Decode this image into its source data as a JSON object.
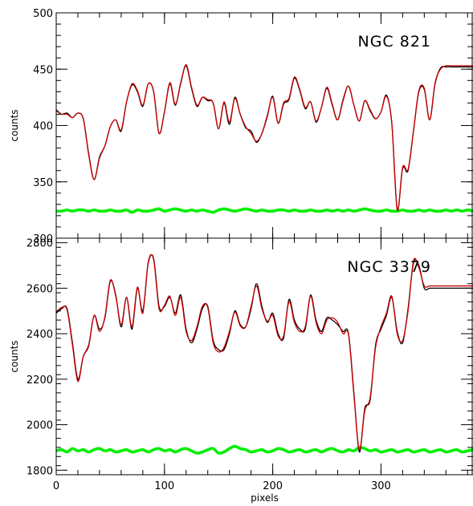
{
  "chart_data": [
    {
      "type": "line",
      "annotation": "NGC 821",
      "xlabel": "",
      "ylabel": "counts",
      "xlim": [
        0,
        385
      ],
      "ylim": [
        300,
        500
      ],
      "xticks": [
        0,
        100,
        200,
        300
      ],
      "yticks": [
        300,
        350,
        400,
        450,
        500
      ],
      "series": [
        {
          "color": "#000000",
          "x": [
            0,
            5,
            10,
            15,
            20,
            25,
            30,
            35,
            40,
            45,
            50,
            55,
            60,
            65,
            70,
            75,
            80,
            85,
            90,
            95,
            100,
            105,
            110,
            115,
            120,
            125,
            130,
            135,
            140,
            145,
            150,
            155,
            160,
            165,
            170,
            175,
            180,
            185,
            190,
            195,
            200,
            205,
            210,
            215,
            220,
            225,
            230,
            235,
            240,
            245,
            250,
            255,
            260,
            265,
            270,
            275,
            280,
            285,
            290,
            295,
            300,
            305,
            310,
            315,
            320,
            325,
            330,
            335,
            340,
            345,
            350,
            355,
            360,
            365,
            370,
            375,
            380,
            385
          ],
          "y": [
            414,
            410,
            411,
            407,
            411,
            406,
            375,
            352,
            372,
            382,
            399,
            405,
            395,
            421,
            436,
            430,
            417,
            437,
            430,
            393,
            412,
            437,
            418,
            438,
            453,
            433,
            417,
            425,
            422,
            420,
            397,
            420,
            401,
            425,
            410,
            398,
            395,
            385,
            393,
            408,
            426,
            402,
            419,
            423,
            442,
            431,
            415,
            421,
            403,
            416,
            433,
            418,
            405,
            423,
            435,
            418,
            404,
            422,
            413,
            406,
            412,
            427,
            402,
            326,
            362,
            360,
            395,
            430,
            432,
            405,
            437,
            451,
            452,
            452,
            452,
            452,
            452,
            452
          ]
        },
        {
          "color": "#cc0000",
          "x": [
            0,
            5,
            10,
            15,
            20,
            25,
            30,
            35,
            40,
            45,
            50,
            55,
            60,
            65,
            70,
            75,
            80,
            85,
            90,
            95,
            100,
            105,
            110,
            115,
            120,
            125,
            130,
            135,
            140,
            145,
            150,
            155,
            160,
            165,
            170,
            175,
            180,
            185,
            190,
            195,
            200,
            205,
            210,
            215,
            220,
            225,
            230,
            235,
            240,
            245,
            250,
            255,
            260,
            265,
            270,
            275,
            280,
            285,
            290,
            295,
            300,
            305,
            310,
            315,
            320,
            325,
            330,
            335,
            340,
            345,
            350,
            355,
            360,
            365,
            370,
            375,
            380,
            385
          ],
          "y": [
            413,
            410,
            410,
            407,
            411,
            406,
            374,
            352,
            371,
            382,
            399,
            405,
            396,
            421,
            437,
            431,
            418,
            437,
            430,
            393,
            412,
            438,
            419,
            437,
            454,
            434,
            418,
            425,
            423,
            420,
            397,
            421,
            403,
            424,
            410,
            399,
            393,
            386,
            393,
            409,
            425,
            402,
            420,
            424,
            443,
            432,
            416,
            421,
            404,
            416,
            434,
            419,
            405,
            422,
            435,
            418,
            404,
            422,
            414,
            406,
            412,
            426,
            402,
            325,
            363,
            361,
            395,
            431,
            433,
            405,
            438,
            450,
            453,
            453,
            453,
            453,
            453,
            453
          ]
        },
        {
          "color": "#00ee00",
          "x": [
            0,
            5,
            10,
            15,
            20,
            25,
            30,
            35,
            40,
            45,
            50,
            55,
            60,
            65,
            70,
            75,
            80,
            85,
            90,
            95,
            100,
            105,
            110,
            115,
            120,
            125,
            130,
            135,
            140,
            145,
            150,
            155,
            160,
            165,
            170,
            175,
            180,
            185,
            190,
            195,
            200,
            205,
            210,
            215,
            220,
            225,
            230,
            235,
            240,
            245,
            250,
            255,
            260,
            265,
            270,
            275,
            280,
            285,
            290,
            295,
            300,
            305,
            310,
            315,
            320,
            325,
            330,
            335,
            340,
            345,
            350,
            355,
            360,
            365,
            370,
            375,
            380,
            385
          ],
          "y": [
            324,
            324,
            325,
            324,
            325,
            325,
            324,
            325,
            324,
            324,
            325,
            324,
            324,
            325,
            323,
            325,
            324,
            324,
            325,
            326,
            324,
            325,
            326,
            325,
            324,
            325,
            324,
            325,
            324,
            323,
            325,
            326,
            325,
            324,
            325,
            326,
            325,
            324,
            325,
            324,
            324,
            325,
            325,
            324,
            325,
            324,
            324,
            325,
            324,
            324,
            325,
            324,
            325,
            324,
            325,
            324,
            325,
            326,
            325,
            324,
            324,
            325,
            324,
            324,
            325,
            324,
            324,
            325,
            324,
            325,
            324,
            324,
            325,
            324,
            325,
            324,
            325,
            324
          ]
        }
      ]
    },
    {
      "type": "line",
      "annotation": "NGC 3379",
      "xlabel": "pixels",
      "ylabel": "counts",
      "xlim": [
        0,
        385
      ],
      "ylim": [
        1780,
        2820
      ],
      "xticks": [
        0,
        100,
        200,
        300
      ],
      "yticks": [
        1800,
        2000,
        2200,
        2400,
        2600,
        2800
      ],
      "series": [
        {
          "color": "#000000",
          "x": [
            0,
            5,
            10,
            15,
            20,
            25,
            30,
            35,
            40,
            45,
            50,
            55,
            60,
            65,
            70,
            75,
            80,
            85,
            90,
            95,
            100,
            105,
            110,
            115,
            120,
            125,
            130,
            135,
            140,
            145,
            150,
            155,
            160,
            165,
            170,
            175,
            180,
            185,
            190,
            195,
            200,
            205,
            210,
            215,
            220,
            225,
            230,
            235,
            240,
            245,
            250,
            255,
            260,
            265,
            270,
            275,
            280,
            285,
            290,
            295,
            300,
            305,
            310,
            315,
            320,
            325,
            330,
            335,
            340,
            345,
            350,
            355,
            360,
            365,
            370,
            375,
            380,
            385
          ],
          "y": [
            2490,
            2510,
            2510,
            2360,
            2200,
            2300,
            2350,
            2480,
            2420,
            2470,
            2630,
            2570,
            2430,
            2560,
            2420,
            2600,
            2500,
            2710,
            2730,
            2520,
            2520,
            2560,
            2490,
            2570,
            2420,
            2360,
            2420,
            2510,
            2520,
            2370,
            2330,
            2330,
            2400,
            2500,
            2440,
            2430,
            2510,
            2620,
            2520,
            2450,
            2490,
            2400,
            2380,
            2550,
            2460,
            2420,
            2420,
            2570,
            2460,
            2410,
            2470,
            2460,
            2440,
            2410,
            2400,
            2140,
            1880,
            2070,
            2110,
            2350,
            2420,
            2480,
            2560,
            2410,
            2360,
            2510,
            2710,
            2700,
            2600,
            2600,
            2600,
            2600,
            2600,
            2600,
            2600,
            2600,
            2600,
            2600
          ]
        },
        {
          "color": "#cc0000",
          "x": [
            0,
            5,
            10,
            15,
            20,
            25,
            30,
            35,
            40,
            45,
            50,
            55,
            60,
            65,
            70,
            75,
            80,
            85,
            90,
            95,
            100,
            105,
            110,
            115,
            120,
            125,
            130,
            135,
            140,
            145,
            150,
            155,
            160,
            165,
            170,
            175,
            180,
            185,
            190,
            195,
            200,
            205,
            210,
            215,
            220,
            225,
            230,
            235,
            240,
            245,
            250,
            255,
            260,
            265,
            270,
            275,
            280,
            285,
            290,
            295,
            300,
            305,
            310,
            315,
            320,
            325,
            330,
            335,
            340,
            345,
            350,
            355,
            360,
            365,
            370,
            375,
            380,
            385
          ],
          "y": [
            2495,
            2515,
            2505,
            2350,
            2190,
            2300,
            2345,
            2480,
            2410,
            2475,
            2635,
            2565,
            2440,
            2560,
            2430,
            2605,
            2490,
            2715,
            2725,
            2510,
            2525,
            2565,
            2480,
            2560,
            2410,
            2370,
            2430,
            2520,
            2515,
            2360,
            2320,
            2340,
            2410,
            2495,
            2435,
            2430,
            2520,
            2610,
            2510,
            2455,
            2480,
            2390,
            2390,
            2540,
            2450,
            2410,
            2430,
            2565,
            2450,
            2400,
            2460,
            2470,
            2450,
            2400,
            2395,
            2130,
            1890,
            2060,
            2120,
            2340,
            2430,
            2490,
            2565,
            2400,
            2370,
            2500,
            2720,
            2690,
            2610,
            2610,
            2610,
            2610,
            2610,
            2610,
            2610,
            2610,
            2610,
            2610
          ]
        },
        {
          "color": "#00ee00",
          "x": [
            0,
            5,
            10,
            15,
            20,
            25,
            30,
            35,
            40,
            45,
            50,
            55,
            60,
            65,
            70,
            75,
            80,
            85,
            90,
            95,
            100,
            105,
            110,
            115,
            120,
            125,
            130,
            135,
            140,
            145,
            150,
            155,
            160,
            165,
            170,
            175,
            180,
            185,
            190,
            195,
            200,
            205,
            210,
            215,
            220,
            225,
            230,
            235,
            240,
            245,
            250,
            255,
            260,
            265,
            270,
            275,
            280,
            285,
            290,
            295,
            300,
            305,
            310,
            315,
            320,
            325,
            330,
            335,
            340,
            345,
            350,
            355,
            360,
            365,
            370,
            375,
            380,
            385
          ],
          "y": [
            1885,
            1890,
            1880,
            1895,
            1885,
            1890,
            1880,
            1890,
            1895,
            1885,
            1890,
            1880,
            1885,
            1890,
            1880,
            1885,
            1890,
            1880,
            1890,
            1895,
            1885,
            1890,
            1880,
            1890,
            1895,
            1885,
            1875,
            1880,
            1890,
            1895,
            1875,
            1880,
            1895,
            1905,
            1895,
            1890,
            1880,
            1885,
            1890,
            1880,
            1885,
            1895,
            1890,
            1880,
            1885,
            1890,
            1880,
            1885,
            1890,
            1880,
            1890,
            1895,
            1885,
            1880,
            1890,
            1885,
            1900,
            1895,
            1885,
            1890,
            1880,
            1885,
            1890,
            1880,
            1885,
            1890,
            1880,
            1885,
            1890,
            1880,
            1885,
            1890,
            1880,
            1885,
            1890,
            1880,
            1885,
            1890
          ]
        }
      ]
    }
  ]
}
